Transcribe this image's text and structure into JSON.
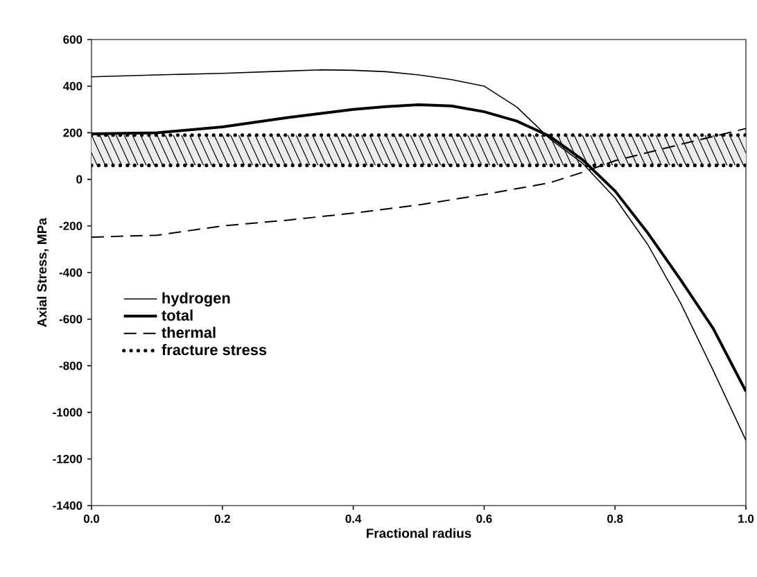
{
  "chart_data": {
    "type": "line",
    "xlabel": "Fractional radius",
    "ylabel": "Axial Stress, MPa",
    "xlim": [
      0,
      1
    ],
    "ylim": [
      -1400,
      600
    ],
    "xticks": [
      {
        "value": 0,
        "label": "0.0"
      },
      {
        "value": 0.2,
        "label": "0.2"
      },
      {
        "value": 0.4,
        "label": "0.4"
      },
      {
        "value": 0.6,
        "label": "0.6"
      },
      {
        "value": 0.8,
        "label": "0.8"
      },
      {
        "value": 1,
        "label": "1.0"
      }
    ],
    "yticks": [
      -1400,
      -1200,
      -1000,
      -800,
      -600,
      -400,
      -200,
      0,
      200,
      400,
      600
    ],
    "legend": "left",
    "series": [
      {
        "name": "hydrogen",
        "color": "#000000",
        "line_style": "solid",
        "x": [
          0,
          0.1,
          0.2,
          0.3,
          0.35,
          0.4,
          0.45,
          0.5,
          0.55,
          0.6,
          0.65,
          0.7,
          0.75,
          0.8,
          0.85,
          0.9,
          0.95,
          1.0
        ],
        "values": [
          440,
          448,
          455,
          465,
          470,
          468,
          462,
          448,
          428,
          400,
          310,
          175,
          70,
          -80,
          -280,
          -530,
          -820,
          -1120
        ]
      },
      {
        "name": "total",
        "color": "#000000",
        "line_style": "solid",
        "x": [
          0,
          0.1,
          0.2,
          0.3,
          0.4,
          0.45,
          0.5,
          0.55,
          0.6,
          0.65,
          0.7,
          0.75,
          0.8,
          0.85,
          0.9,
          0.95,
          1.0
        ],
        "values": [
          195,
          200,
          225,
          265,
          300,
          312,
          320,
          315,
          290,
          250,
          185,
          85,
          -50,
          -230,
          -430,
          -640,
          -910
        ]
      },
      {
        "name": "thermal",
        "color": "#000000",
        "line_style": "dashed",
        "x": [
          0,
          0.1,
          0.2,
          0.3,
          0.4,
          0.5,
          0.6,
          0.7,
          0.75,
          0.8,
          0.9,
          1.0
        ],
        "values": [
          -248,
          -240,
          -200,
          -175,
          -145,
          -110,
          -65,
          -15,
          30,
          80,
          150,
          218
        ]
      },
      {
        "name": "fracture stress",
        "color": "#000000",
        "line_style": "dotted",
        "x": [
          0,
          1
        ],
        "values": [
          190,
          190
        ]
      },
      {
        "color": "#000000",
        "line_style": "dotted",
        "x": [
          0,
          1
        ],
        "values": [
          60,
          60
        ]
      }
    ],
    "bands": [
      {
        "axis": "y",
        "from": 60,
        "to": 190,
        "color": "#ececec"
      }
    ]
  }
}
